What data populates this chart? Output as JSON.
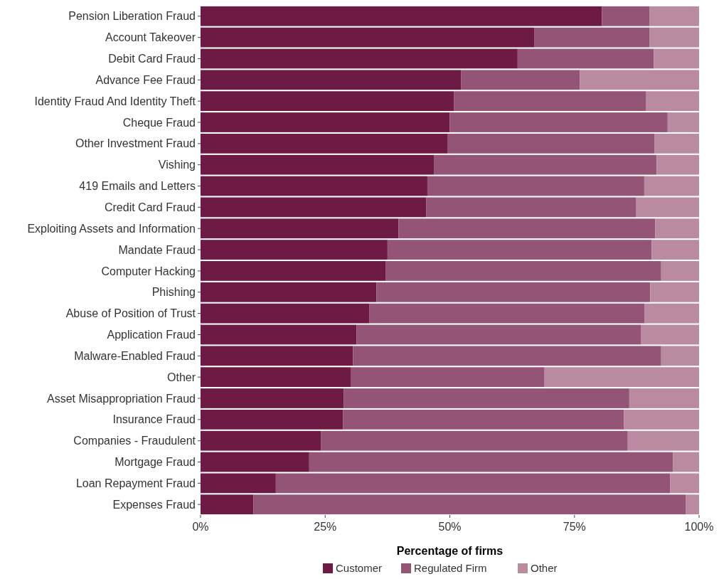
{
  "chart_data": {
    "type": "bar",
    "orientation": "horizontal",
    "stacked": true,
    "xlabel": "Percentage of firms",
    "legend": "bottom",
    "grid": false,
    "categories": [
      "Pension Liberation Fraud",
      "Account Takeover",
      "Debit Card Fraud",
      "Advance Fee Fraud",
      "Identity Fraud And Identity Theft",
      "Cheque Fraud",
      "Other Investment Fraud",
      "Vishing",
      "419 Emails and Letters",
      "Credit Card Fraud",
      "Exploiting Assets and Information",
      "Mandate Fraud",
      "Computer Hacking",
      "Phishing",
      "Abuse of Position of Trust",
      "Application Fraud",
      "Malware-Enabled Fraud",
      "Other",
      "Asset Misappropriation Fraud",
      "Insurance Fraud",
      "Companies - Fraudulent",
      "Mortgage Fraud",
      "Loan Repayment Fraud",
      "Expenses Fraud"
    ],
    "xlim": [
      0,
      100
    ],
    "xticks": [
      {
        "value": 0,
        "label": "0%"
      },
      {
        "value": 25,
        "label": "25%"
      },
      {
        "value": 50,
        "label": "50%"
      },
      {
        "value": 75,
        "label": "75%"
      },
      {
        "value": 100,
        "label": "100%"
      }
    ],
    "series": [
      {
        "name": "Customer",
        "color": "#6d1a45",
        "values": [
          80.5,
          67.0,
          63.6,
          52.3,
          50.8,
          50.0,
          49.5,
          46.8,
          45.5,
          45.3,
          39.7,
          37.5,
          37.1,
          35.3,
          33.9,
          31.3,
          30.6,
          30.1,
          28.7,
          28.6,
          24.2,
          21.8,
          15.1,
          10.6
        ]
      },
      {
        "name": "Regulated Firm",
        "color": "#935475",
        "values": [
          9.6,
          23.1,
          27.3,
          23.8,
          38.6,
          43.7,
          41.6,
          44.7,
          43.5,
          42.1,
          51.5,
          53.0,
          55.3,
          54.9,
          55.2,
          57.0,
          61.8,
          38.9,
          57.3,
          56.3,
          61.5,
          73.0,
          79.1,
          86.7
        ]
      },
      {
        "name": "Other",
        "color": "#b98aa0",
        "values": [
          9.9,
          9.9,
          9.1,
          23.9,
          10.6,
          6.3,
          8.9,
          8.5,
          11.0,
          12.6,
          8.8,
          9.5,
          7.6,
          9.8,
          10.9,
          11.7,
          7.6,
          31.0,
          14.0,
          15.1,
          14.3,
          5.2,
          5.8,
          2.7
        ]
      }
    ]
  }
}
